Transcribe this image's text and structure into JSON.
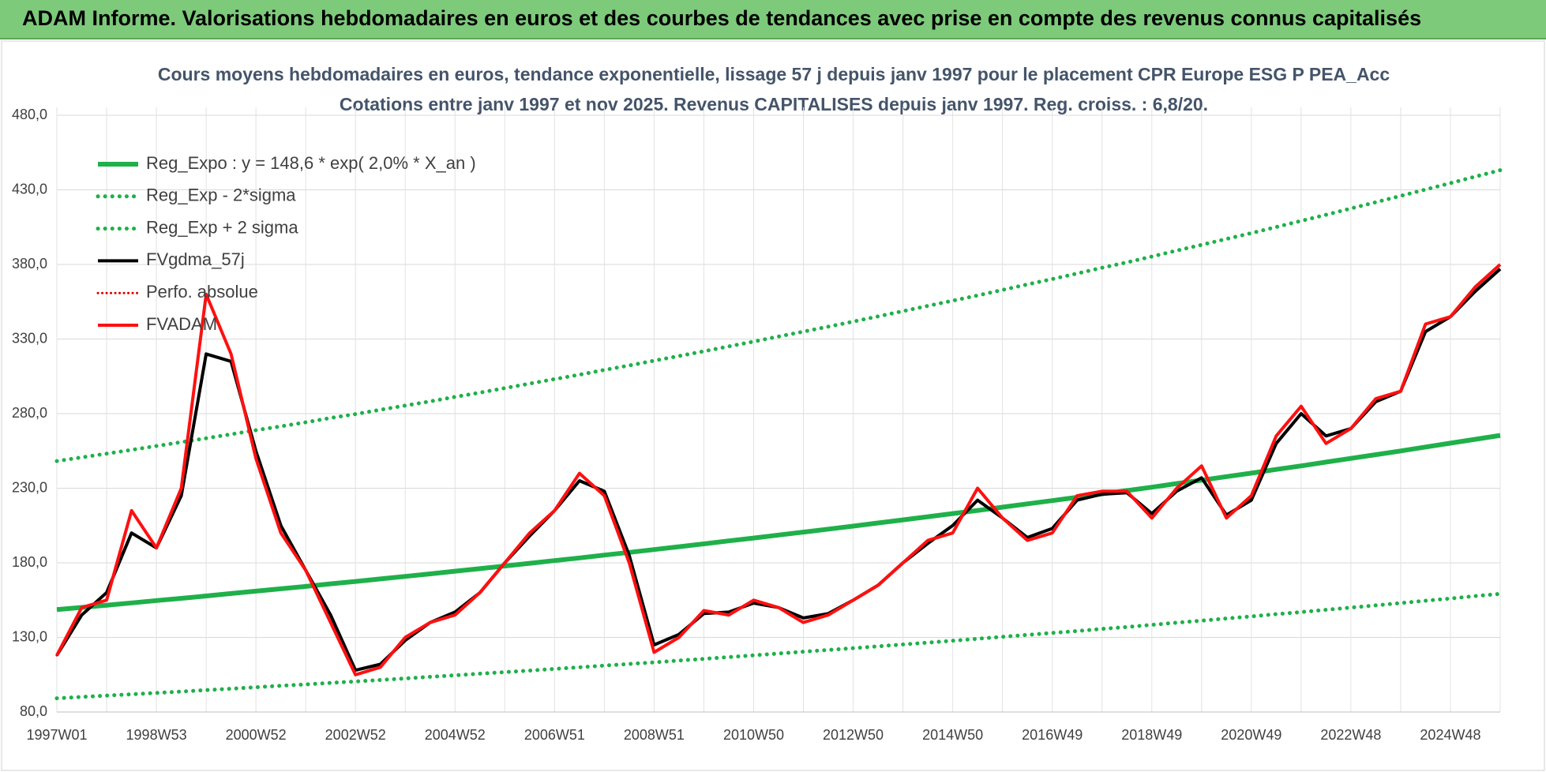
{
  "header": {
    "title": "ADAM Informe. Valorisations hebdomadaires en euros et des courbes de tendances avec prise en compte des revenus connus capitalisés"
  },
  "chart_data": {
    "type": "line",
    "title": "Cours moyens hebdomadaires en euros, tendance exponentielle, lissage 57 j depuis janv 1997 pour le placement CPR Europe ESG P PEA_Acc",
    "subtitle": "Cotations entre janv 1997 et nov 2025. Revenus CAPITALISES depuis janv 1997. Reg. croiss. : 6,8/20.",
    "categories": [
      "1997W01",
      null,
      null,
      null,
      "1998W53",
      null,
      null,
      null,
      "2000W52",
      null,
      null,
      null,
      "2002W52",
      null,
      null,
      null,
      "2004W52",
      null,
      null,
      null,
      "2006W51",
      null,
      null,
      null,
      "2008W51",
      null,
      null,
      null,
      "2010W50",
      null,
      null,
      null,
      "2012W50",
      null,
      null,
      null,
      "2014W50",
      null,
      null,
      null,
      "2016W49",
      null,
      null,
      null,
      "2018W49",
      null,
      null,
      null,
      "2020W49",
      null,
      null,
      null,
      "2022W48",
      null,
      null,
      null,
      "2024W48",
      null,
      null
    ],
    "ylim": [
      80,
      480
    ],
    "yticks": [
      {
        "value": 80,
        "label": "80,0"
      },
      {
        "value": 130,
        "label": "130,0"
      },
      {
        "value": 180,
        "label": "180,0"
      },
      {
        "value": 230,
        "label": "230,0"
      },
      {
        "value": 280,
        "label": "280,0"
      },
      {
        "value": 330,
        "label": "330,0"
      },
      {
        "value": 380,
        "label": "380,0"
      },
      {
        "value": 430,
        "label": "430,0"
      },
      {
        "value": 480,
        "label": "480,0"
      }
    ],
    "grid": true,
    "legend": "top-left",
    "series": [
      {
        "name": "Reg_Expo : y = 148,6 * exp( 2,0% *  X_an )",
        "color": "#1fb04a",
        "line_style": "solid",
        "width": 6,
        "values": [
          148.6,
          150.1,
          151.6,
          153.1,
          154.7,
          156.2,
          157.8,
          159.4,
          161.0,
          162.6,
          164.2,
          165.9,
          167.5,
          169.2,
          170.9,
          172.6,
          174.4,
          176.1,
          177.9,
          179.7,
          181.5,
          183.3,
          185.2,
          187.0,
          188.9,
          190.8,
          192.7,
          194.7,
          196.6,
          198.6,
          200.6,
          202.6,
          204.6,
          206.7,
          208.8,
          210.9,
          213.0,
          215.1,
          217.3,
          219.5,
          221.7,
          223.9,
          226.2,
          228.4,
          230.7,
          233.1,
          235.4,
          237.8,
          240.1,
          242.6,
          245.0,
          247.5,
          250.0,
          252.5,
          255.0,
          257.6,
          260.2,
          262.8,
          265.4
        ]
      },
      {
        "name": "Reg_Exp - 2*sigma",
        "color": "#1fb04a",
        "line_style": "dotted",
        "width": 5,
        "values": [
          89.2,
          90.1,
          91.0,
          91.9,
          92.8,
          93.7,
          94.7,
          95.6,
          96.6,
          97.6,
          98.5,
          99.5,
          100.5,
          101.5,
          102.5,
          103.6,
          104.6,
          105.7,
          106.7,
          107.8,
          108.9,
          110.0,
          111.1,
          112.2,
          113.3,
          114.5,
          115.6,
          116.8,
          118.0,
          119.2,
          120.4,
          121.6,
          122.8,
          124.0,
          125.3,
          126.5,
          127.8,
          129.1,
          130.4,
          131.7,
          133.0,
          134.3,
          135.7,
          137.0,
          138.4,
          139.9,
          141.2,
          142.7,
          144.1,
          145.6,
          147.0,
          148.5,
          150.0,
          151.5,
          153.0,
          154.6,
          156.1,
          157.7,
          159.2
        ]
      },
      {
        "name": "Reg_Exp + 2 sigma",
        "color": "#1fb04a",
        "line_style": "dotted",
        "width": 5,
        "values": [
          248.2,
          250.7,
          253.2,
          255.7,
          258.3,
          260.9,
          263.5,
          266.2,
          268.9,
          271.5,
          274.2,
          277.1,
          279.7,
          282.6,
          285.4,
          288.2,
          291.2,
          294.1,
          297.1,
          300.1,
          303.1,
          306.1,
          309.3,
          312.3,
          315.5,
          318.6,
          321.8,
          325.1,
          328.3,
          331.7,
          335.0,
          338.3,
          341.7,
          345.2,
          348.7,
          352.2,
          355.7,
          359.2,
          362.9,
          366.6,
          370.2,
          373.9,
          377.8,
          381.4,
          385.3,
          389.3,
          393.1,
          397.1,
          401.0,
          405.1,
          409.2,
          413.3,
          417.5,
          421.7,
          425.9,
          430.2,
          434.5,
          438.9,
          443.2
        ]
      },
      {
        "name": "FVgdma_57j",
        "color": "#000000",
        "line_style": "solid",
        "width": 4,
        "values": [
          118,
          145,
          160,
          200,
          190,
          225,
          320,
          315,
          255,
          205,
          175,
          145,
          108,
          112,
          128,
          140,
          147,
          160,
          180,
          198,
          215,
          235,
          228,
          185,
          125,
          132,
          146,
          147,
          153,
          150,
          143,
          146,
          155,
          165,
          180,
          193,
          205,
          222,
          210,
          197,
          203,
          222,
          226,
          227,
          213,
          228,
          237,
          212,
          222,
          260,
          280,
          265,
          270,
          288,
          295,
          335,
          345,
          362,
          377
        ]
      },
      {
        "name": "Perfo. absolue",
        "color": "#e00000",
        "line_style": "dotted",
        "width": 3,
        "values": [
          118,
          150,
          155,
          215,
          190,
          230,
          360,
          320,
          250,
          200,
          175,
          140,
          105,
          110,
          130,
          140,
          145,
          160,
          180,
          200,
          215,
          240,
          225,
          180,
          120,
          130,
          148,
          145,
          155,
          150,
          140,
          145,
          155,
          165,
          180,
          195,
          200,
          230,
          210,
          195,
          200,
          225,
          228,
          228,
          210,
          230,
          245,
          210,
          225,
          265,
          285,
          260,
          270,
          290,
          295,
          340,
          345,
          365,
          380
        ]
      },
      {
        "name": "FVADAM",
        "color": "#ff1010",
        "line_style": "solid",
        "width": 4,
        "values": [
          118,
          150,
          155,
          215,
          190,
          230,
          360,
          320,
          250,
          200,
          175,
          140,
          105,
          110,
          130,
          140,
          145,
          160,
          180,
          200,
          215,
          240,
          225,
          180,
          120,
          130,
          148,
          145,
          155,
          150,
          140,
          145,
          155,
          165,
          180,
          195,
          200,
          230,
          210,
          195,
          200,
          225,
          228,
          228,
          210,
          230,
          245,
          210,
          225,
          265,
          285,
          260,
          270,
          290,
          295,
          340,
          345,
          365,
          380
        ]
      }
    ]
  }
}
